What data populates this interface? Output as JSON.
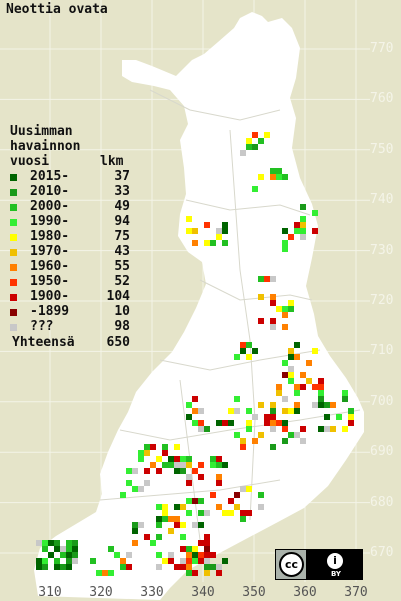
{
  "title": "Neottia ovata",
  "legend": {
    "heading_lines": [
      "Uusimman",
      "havainnon",
      "vuosi"
    ],
    "count_heading": "lkm",
    "items": [
      {
        "label": "2015-",
        "count": "37",
        "color": "#006400"
      },
      {
        "label": "2010-",
        "count": "33",
        "color": "#1a9a1a"
      },
      {
        "label": "2000-",
        "count": "49",
        "color": "#22c022"
      },
      {
        "label": "1990-",
        "count": "94",
        "color": "#33ee33"
      },
      {
        "label": "1980-",
        "count": "75",
        "color": "#ffff00"
      },
      {
        "label": "1970-",
        "count": "43",
        "color": "#f0c000"
      },
      {
        "label": "1960-",
        "count": "55",
        "color": "#ff8000"
      },
      {
        "label": "1950-",
        "count": "52",
        "color": "#ff3300"
      },
      {
        "label": "1900-",
        "count": "104",
        "color": "#cc0000"
      },
      {
        "label": "-1899",
        "count": "10",
        "color": "#880000"
      },
      {
        "label": "???",
        "count": "98",
        "color": "#c8c8c8"
      }
    ],
    "total_label": "Yhteensä",
    "total_count": "650"
  },
  "y_axis_labels": [
    "770",
    "760",
    "750",
    "740",
    "730",
    "720",
    "710",
    "700",
    "690",
    "680",
    "670"
  ],
  "x_axis_labels": [
    "310",
    "320",
    "330",
    "340",
    "350",
    "360",
    "370"
  ],
  "license_badge": {
    "cc": "cc",
    "by": "BY",
    "person_icon": "i"
  },
  "colors": {
    "background": "#e5e4c9",
    "land": "#ffffff",
    "grid": "#f4f4e8",
    "borders": "#d8d8cc"
  }
}
